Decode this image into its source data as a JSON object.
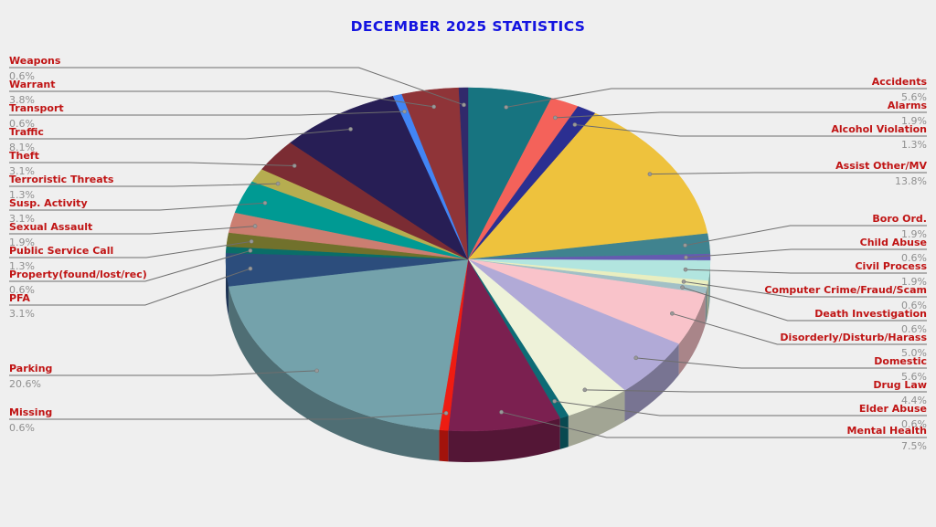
{
  "chart_data": {
    "type": "pie",
    "title": "DECEMBER 2025 STATISTICS",
    "unit": "%",
    "order": "clockwise-from-12-alphabetical",
    "style": "3d-pie-with-leader-lines",
    "title_color": "#1414e0",
    "label_color": "#c01414",
    "pct_color": "#8f8f8f",
    "leader_color": "#6e6e6e",
    "background": "#efefef",
    "slices": [
      {
        "label": "Accidents",
        "value": 5.6,
        "color": "#177480"
      },
      {
        "label": "Alarms",
        "value": 1.9,
        "color": "#f4625a"
      },
      {
        "label": "Alcohol Violation",
        "value": 1.3,
        "color": "#2b2f91"
      },
      {
        "label": "Assist Other/MV",
        "value": 13.8,
        "color": "#eec23d"
      },
      {
        "label": "Boro Ord.",
        "value": 1.9,
        "color": "#40838f"
      },
      {
        "label": "Child Abuse",
        "value": 0.6,
        "color": "#655bb0"
      },
      {
        "label": "Civil Process",
        "value": 1.9,
        "color": "#b2e5df"
      },
      {
        "label": "Computer Crime/Fraud/Scam",
        "value": 0.6,
        "color": "#e9eec0"
      },
      {
        "label": "Death Investigation",
        "value": 0.6,
        "color": "#a2c0c6"
      },
      {
        "label": "Disorderly/Disturb/Harass",
        "value": 5.0,
        "color": "#f9c3ca"
      },
      {
        "label": "Domestic",
        "value": 5.6,
        "color": "#b1aad7"
      },
      {
        "label": "Drug Law",
        "value": 4.4,
        "color": "#eef2d9"
      },
      {
        "label": "Elder Abuse",
        "value": 0.6,
        "color": "#0d6b75"
      },
      {
        "label": "Mental Health",
        "value": 7.5,
        "color": "#7b2050"
      },
      {
        "label": "Missing",
        "value": 0.6,
        "color": "#ee1c12"
      },
      {
        "label": "Parking",
        "value": 20.6,
        "color": "#74a2ab"
      },
      {
        "label": "PFA",
        "value": 3.1,
        "color": "#2c4d7c"
      },
      {
        "label": "Property(found/lost/rec)",
        "value": 0.6,
        "color": "#0a6e68"
      },
      {
        "label": "Public Service Call",
        "value": 1.3,
        "color": "#71712c"
      },
      {
        "label": "Sexual Assault",
        "value": 1.9,
        "color": "#cb7e71"
      },
      {
        "label": "Susp. Activity",
        "value": 3.1,
        "color": "#009a93"
      },
      {
        "label": "Terroristic Threats",
        "value": 1.3,
        "color": "#b6ad50"
      },
      {
        "label": "Theft",
        "value": 3.1,
        "color": "#7b2c33"
      },
      {
        "label": "Traffic",
        "value": 8.1,
        "color": "#271e55"
      },
      {
        "label": "Transport",
        "value": 0.6,
        "color": "#4285f5"
      },
      {
        "label": "Warrant",
        "value": 3.8,
        "color": "#8f3438"
      },
      {
        "label": "Weapons",
        "value": 0.6,
        "color": "#312a6b"
      }
    ]
  }
}
